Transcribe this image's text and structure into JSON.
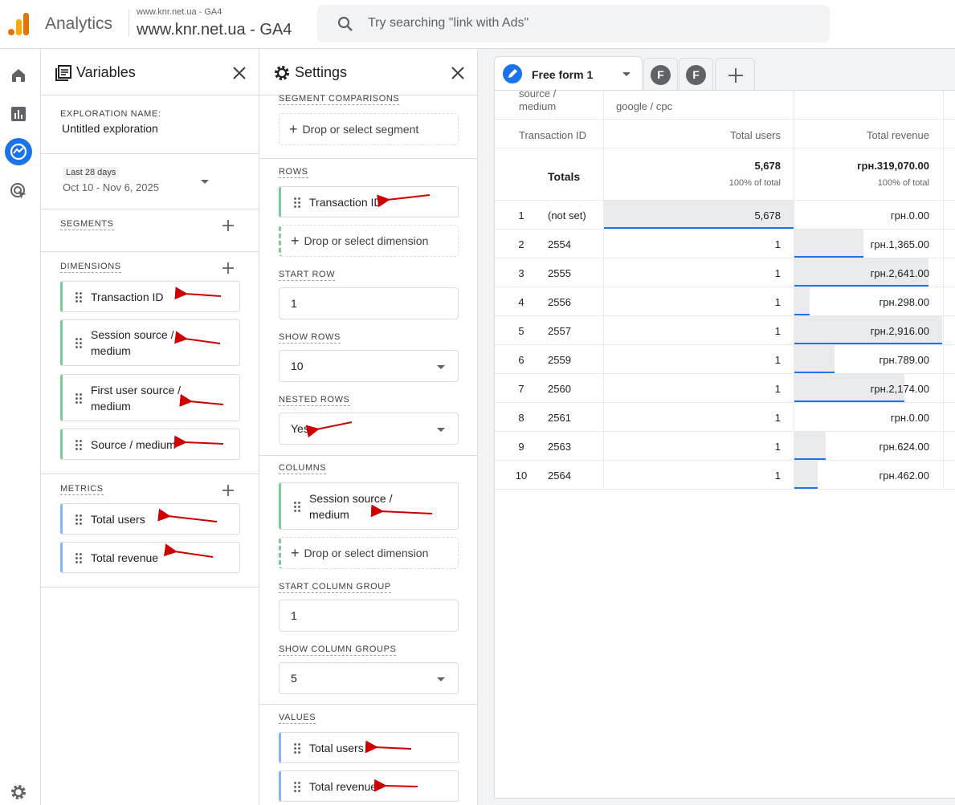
{
  "header": {
    "app": "Analytics",
    "account": "www.knr.net.ua - GA4",
    "property": "www.knr.net.ua - GA4",
    "search": "Try searching \"link with Ads\""
  },
  "variables": {
    "title": "Variables",
    "exploration_label": "EXPLORATION NAME:",
    "exploration_name": "Untitled exploration",
    "date_label": "Last 28 days",
    "date_range": "Oct 10 - Nov 6, 2025",
    "segments_label": "SEGMENTS",
    "dimensions_label": "DIMENSIONS",
    "dimensions": [
      "Transaction ID",
      "Session source / medium",
      "First user source / medium",
      "Source / medium"
    ],
    "metrics_label": "METRICS",
    "metrics": [
      "Total users",
      "Total revenue"
    ]
  },
  "settings": {
    "title": "Settings",
    "segment_comparisons_label": "SEGMENT COMPARISONS",
    "segment_drop": "Drop or select segment",
    "rows_label": "ROWS",
    "rows": [
      "Transaction ID"
    ],
    "rows_drop": "Drop or select dimension",
    "start_row_label": "START ROW",
    "start_row": "1",
    "show_rows_label": "SHOW ROWS",
    "show_rows": "10",
    "nested_rows_label": "NESTED ROWS",
    "nested_rows": "Yes",
    "columns_label": "COLUMNS",
    "columns": [
      "Session source / medium"
    ],
    "columns_drop": "Drop or select dimension",
    "start_column_group_label": "START COLUMN GROUP",
    "start_column_group": "1",
    "show_column_groups_label": "SHOW COLUMN GROUPS",
    "show_column_groups": "5",
    "values_label": "VALUES",
    "values": [
      "Total users",
      "Total revenue"
    ]
  },
  "tabs": {
    "active": "Free form 1",
    "others": [
      "F",
      "F"
    ]
  },
  "table": {
    "column_dimension": "source / medium",
    "column_value": "google / cpc",
    "row_header": "Transaction ID",
    "metrics": [
      "Total users",
      "Total revenue"
    ],
    "totals_label": "Totals",
    "totals": [
      [
        "5,678",
        "100% of total"
      ],
      [
        "грн.319,070.00",
        "100% of total"
      ]
    ],
    "rows": [
      [
        1,
        "(not set)",
        "5,678",
        "грн.0.00"
      ],
      [
        2,
        "2554",
        "1",
        "грн.1,365.00"
      ],
      [
        3,
        "2555",
        "1",
        "грн.2,641.00"
      ],
      [
        4,
        "2556",
        "1",
        "грн.298.00"
      ],
      [
        5,
        "2557",
        "1",
        "грн.2,916.00"
      ],
      [
        6,
        "2559",
        "1",
        "грн.789.00"
      ],
      [
        7,
        "2560",
        "1",
        "грн.2,174.00"
      ],
      [
        8,
        "2561",
        "1",
        "грн.0.00"
      ],
      [
        9,
        "2563",
        "1",
        "грн.624.00"
      ],
      [
        10,
        "2564",
        "1",
        "грн.462.00"
      ]
    ]
  }
}
